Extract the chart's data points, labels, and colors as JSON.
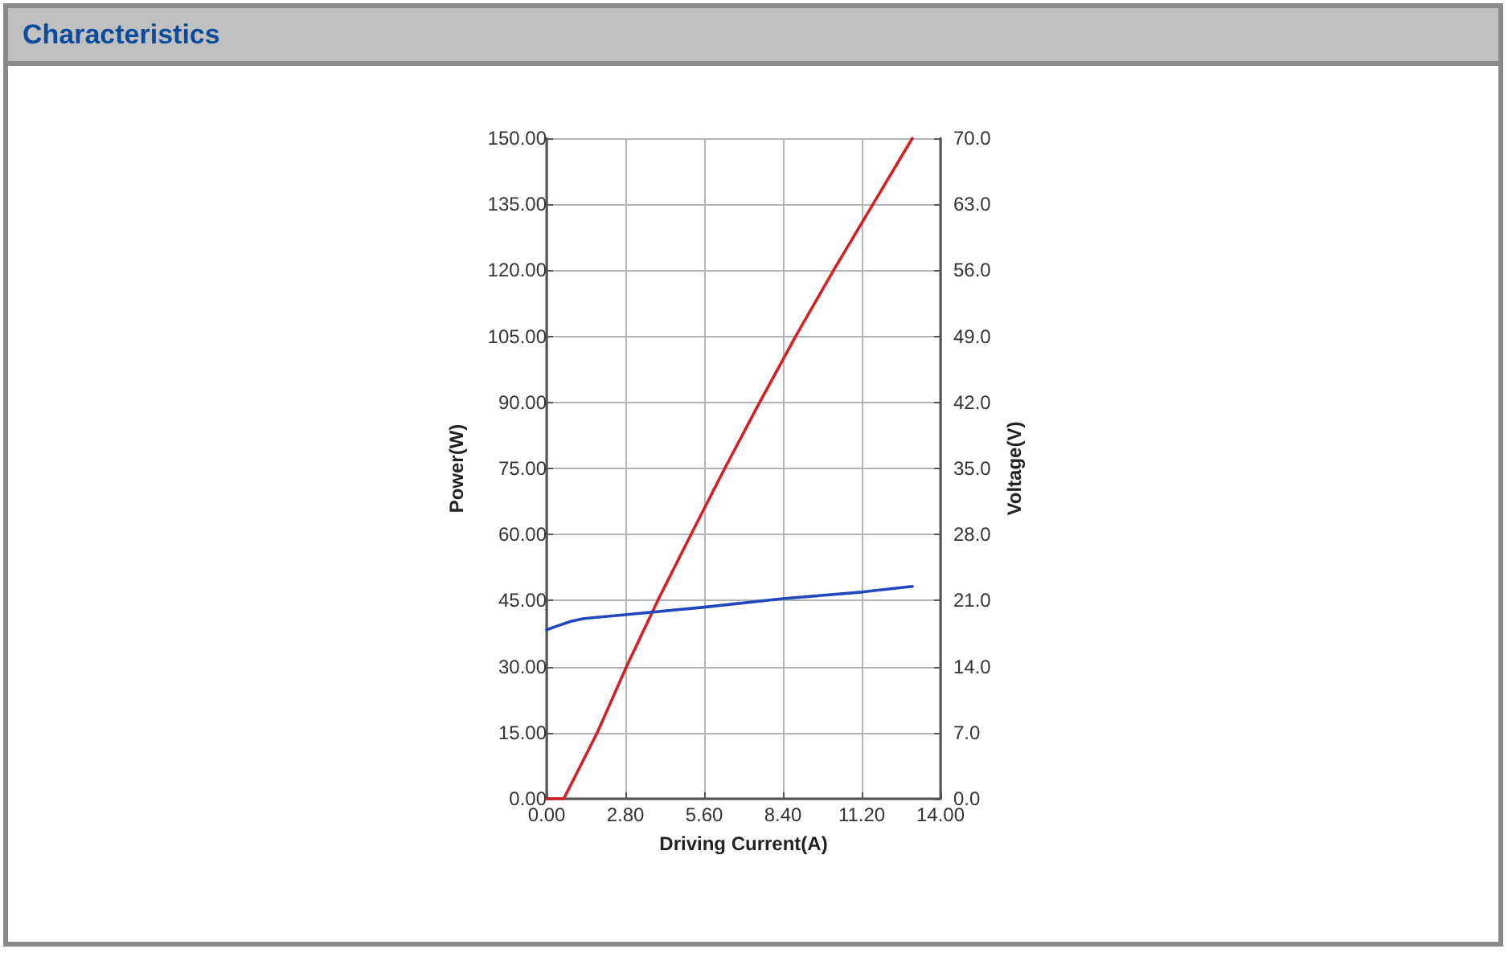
{
  "chart_data": {
    "type": "line",
    "title": "Characteristics",
    "xlabel": "Driving Current(A)",
    "ylabel": "Power(W)",
    "y2label": "Voltage(V)",
    "xlim": [
      0,
      14
    ],
    "xticks": [
      {
        "value": 0,
        "label": "0.00"
      },
      {
        "value": 2.8,
        "label": "2.80"
      },
      {
        "value": 5.6,
        "label": "5.60"
      },
      {
        "value": 8.4,
        "label": "8.40"
      },
      {
        "value": 11.2,
        "label": "11.20"
      },
      {
        "value": 14,
        "label": "14.00"
      }
    ],
    "ylim": [
      0,
      150
    ],
    "yticks": [
      {
        "value": 0,
        "label": "0.00"
      },
      {
        "value": 15,
        "label": "15.00"
      },
      {
        "value": 30,
        "label": "30.00"
      },
      {
        "value": 45,
        "label": "45.00"
      },
      {
        "value": 60,
        "label": "60.00"
      },
      {
        "value": 75,
        "label": "75.00"
      },
      {
        "value": 90,
        "label": "90.00"
      },
      {
        "value": 105,
        "label": "105.00"
      },
      {
        "value": 120,
        "label": "120.00"
      },
      {
        "value": 135,
        "label": "135.00"
      },
      {
        "value": 150,
        "label": "150.00"
      }
    ],
    "y2lim": [
      0,
      70
    ],
    "y2ticks": [
      {
        "value": 0,
        "label": "0.0"
      },
      {
        "value": 7,
        "label": "7.0"
      },
      {
        "value": 14,
        "label": "14.0"
      },
      {
        "value": 21,
        "label": "21.0"
      },
      {
        "value": 28,
        "label": "28.0"
      },
      {
        "value": 35,
        "label": "35.0"
      },
      {
        "value": 42,
        "label": "42.0"
      },
      {
        "value": 49,
        "label": "49.0"
      },
      {
        "value": 56,
        "label": "56.0"
      },
      {
        "value": 63,
        "label": "63.0"
      },
      {
        "value": 70,
        "label": "70.0"
      }
    ],
    "grid": true,
    "marker": "none",
    "line_style": "solid",
    "series": [
      {
        "color": "#d41f23",
        "x": [
          0,
          0.61,
          1.8,
          2.84,
          3.95,
          5.13,
          6.33,
          7.57,
          8.85,
          10.2,
          11.6,
          13.0
        ],
        "values": [
          0,
          0,
          15,
          30,
          45,
          60,
          75,
          90,
          105,
          120,
          135,
          150
        ]
      },
      {
        "color": "#1f48c0",
        "axis": "y2",
        "x": [
          0,
          0.37,
          0.86,
          1.33,
          2.8,
          5.6,
          8.4,
          11.2,
          13.0
        ],
        "values": [
          17.9,
          18.3,
          18.8,
          19.1,
          19.5,
          20.3,
          21.2,
          21.9,
          22.5
        ]
      }
    ]
  }
}
